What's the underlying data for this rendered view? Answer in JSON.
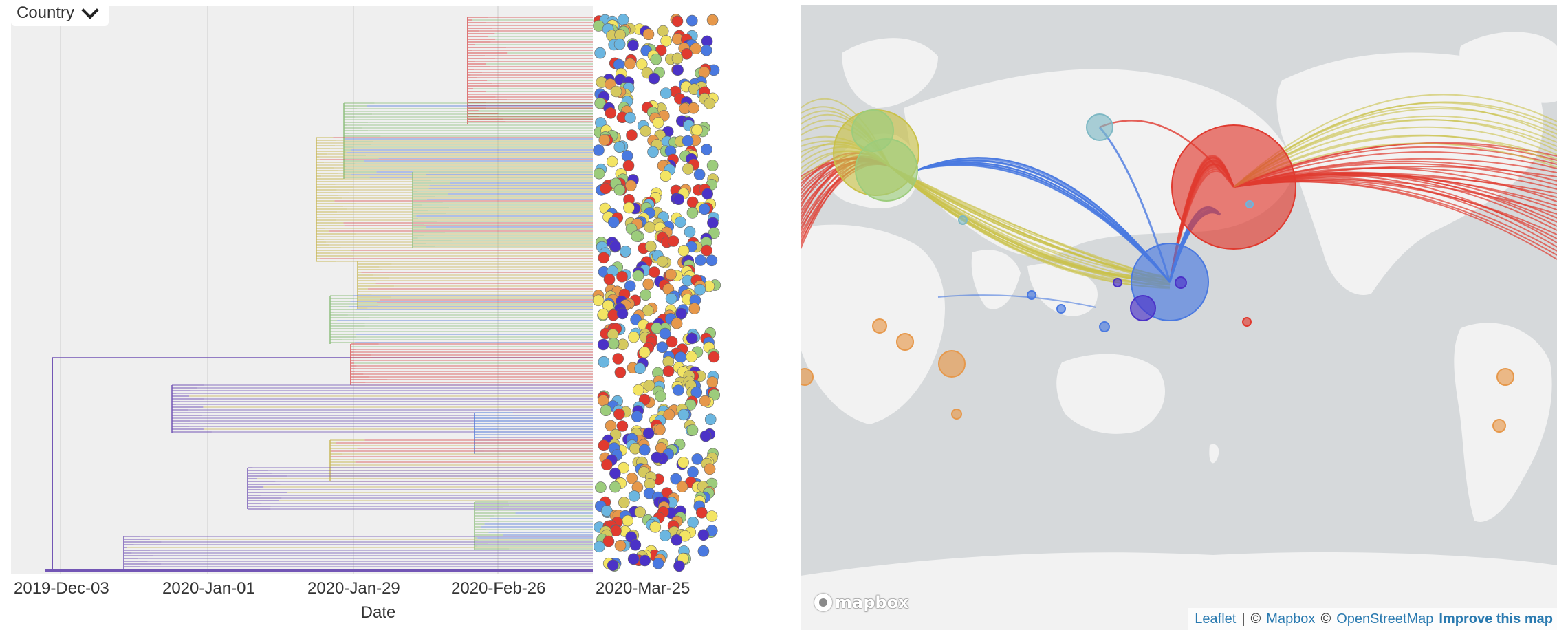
{
  "tree": {
    "color_by": "Country",
    "axis_title": "Date",
    "ticks": [
      "2019-Dec-03",
      "2020-Jan-01",
      "2020-Jan-29",
      "2020-Feb-26",
      "2020-Mar-25"
    ],
    "legend_colors": [
      "#e03a2f",
      "#9ccc7c",
      "#f3e463",
      "#4a79e0",
      "#d5c95f",
      "#4b32c7",
      "#6bb6e0",
      "#e6984b"
    ],
    "branch_colors": [
      "#7356b5",
      "#c9b85a",
      "#d94d4d",
      "#8fbf7f",
      "#4f77d8"
    ]
  },
  "map": {
    "logo_text": "mapbox",
    "attribution": {
      "leaflet": "Leaflet",
      "sep": "|",
      "copy1": "©",
      "mapbox": "Mapbox",
      "copy2": "©",
      "osm": "OpenStreetMap",
      "improve": "Improve this map"
    },
    "colors": {
      "water": "#d6d9db",
      "land": "#f2f2f2",
      "north_america": "#e03a2f",
      "europe": "#c9c14a",
      "asia": "#4a79e0",
      "oceania": "#7eb8c4"
    }
  }
}
